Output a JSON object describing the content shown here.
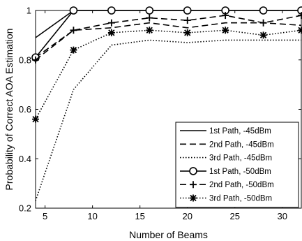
{
  "chart_data": {
    "type": "line",
    "xlabel": "Number of Beams",
    "ylabel": "Probability of Correct AOA Estimation",
    "xlim": [
      4,
      32
    ],
    "ylim": [
      0.2,
      1.0
    ],
    "xticks": [
      5,
      10,
      15,
      20,
      25,
      30
    ],
    "yticks": [
      0.2,
      0.4,
      0.6,
      0.8,
      1.0
    ],
    "ytick_labels": [
      "0.2",
      "0.4",
      "0.6",
      "0.8",
      "1"
    ],
    "grid": false,
    "legend_position": "bottom-right",
    "series": [
      {
        "name": "1st Path, -45dBm",
        "line": "solid",
        "marker": "none",
        "x": [
          4,
          8,
          12,
          16,
          20,
          24,
          28,
          32
        ],
        "y": [
          0.89,
          1.0,
          1.0,
          1.0,
          1.0,
          1.0,
          1.0,
          1.0
        ]
      },
      {
        "name": "2nd Path, -45dBm",
        "line": "dashed",
        "marker": "none",
        "x": [
          4,
          8,
          12,
          16,
          20,
          24,
          28,
          32
        ],
        "y": [
          0.81,
          0.92,
          0.93,
          0.95,
          0.93,
          0.95,
          0.95,
          0.94
        ]
      },
      {
        "name": "3rd Path, -45dBm",
        "line": "dotted",
        "marker": "none",
        "x": [
          4,
          8,
          12,
          16,
          20,
          24,
          28,
          32
        ],
        "y": [
          0.23,
          0.68,
          0.86,
          0.88,
          0.87,
          0.88,
          0.88,
          0.88
        ]
      },
      {
        "name": "1st Path, -50dBm",
        "line": "solid",
        "marker": "circle",
        "x": [
          4,
          8,
          12,
          16,
          20,
          24,
          28,
          32
        ],
        "y": [
          0.81,
          1.0,
          1.0,
          1.0,
          1.0,
          1.0,
          1.0,
          1.0
        ]
      },
      {
        "name": "2nd Path, -50dBm",
        "line": "dashed",
        "marker": "plus",
        "x": [
          4,
          8,
          12,
          16,
          20,
          24,
          28,
          32
        ],
        "y": [
          0.8,
          0.92,
          0.95,
          0.97,
          0.96,
          0.98,
          0.95,
          0.98
        ]
      },
      {
        "name": "3rd Path, -50dBm",
        "line": "dotted",
        "marker": "asterisk",
        "x": [
          4,
          8,
          12,
          16,
          20,
          24,
          28,
          32
        ],
        "y": [
          0.56,
          0.84,
          0.91,
          0.92,
          0.91,
          0.92,
          0.9,
          0.92
        ]
      }
    ]
  }
}
